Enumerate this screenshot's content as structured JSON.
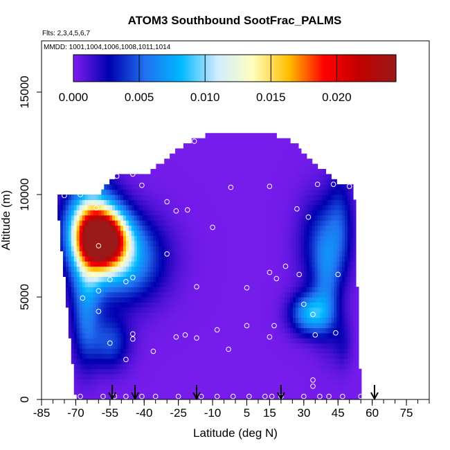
{
  "chart_data": {
    "type": "heatmap",
    "title": "ATOM3 Southbound SootFrac_PALMS",
    "notes": [
      "Flts: 2,3,4,5,6,7",
      "MMDD: 1001,1004,1006,1008,1011,1014"
    ],
    "xlabel": "Latitude (deg N)",
    "ylabel": "Altitude (m)",
    "xlim": [
      -85,
      85
    ],
    "ylim": [
      0,
      17500
    ],
    "xticks": [
      -85,
      -70,
      -55,
      -40,
      -25,
      -10,
      5,
      15,
      30,
      45,
      60,
      75
    ],
    "yticks": [
      0,
      5000,
      10000,
      15000
    ],
    "colorbar": {
      "range": [
        0,
        0.0245
      ],
      "ticks": [
        0.0,
        0.005,
        0.01,
        0.015,
        0.02
      ],
      "tick_labels": [
        "0.000",
        "0.005",
        "0.010",
        "0.015",
        "0.020"
      ]
    },
    "colors": {
      "background_value": "#7f1ef0",
      "scale": [
        "#7f1ef0",
        "#0000b0",
        "#2070f0",
        "#00b8ff",
        "#d0ecff",
        "#ffffc0",
        "#ffc000",
        "#ff0000",
        "#c00000",
        "#9a1a1a"
      ]
    },
    "hotspots": [
      {
        "lat": -57,
        "alt": 7800,
        "value": 0.023
      },
      {
        "lat": -62,
        "alt": 8600,
        "value": 0.013
      },
      {
        "lat": -50,
        "alt": 6800,
        "value": 0.012
      },
      {
        "lat": -55,
        "alt": 2900,
        "value": 0.004
      },
      {
        "lat": 34,
        "alt": 4200,
        "value": 0.008
      },
      {
        "lat": 38,
        "alt": 7500,
        "value": 0.004
      }
    ],
    "flight_markers_lat": [
      -54,
      -44,
      -17,
      20,
      61
    ],
    "sample_points": [
      [
        -81,
        9950
      ],
      [
        -75,
        9950
      ],
      [
        -68,
        10000
      ],
      [
        -61,
        9350
      ],
      [
        -52,
        10900
      ],
      [
        -45,
        11000
      ],
      [
        -41,
        10450
      ],
      [
        -30,
        9650
      ],
      [
        -26,
        9200
      ],
      [
        -21,
        9250
      ],
      [
        -10,
        8400
      ],
      [
        -60,
        7500
      ],
      [
        -30,
        7100
      ],
      [
        -55,
        5850
      ],
      [
        -48,
        5750
      ],
      [
        -45,
        5950
      ],
      [
        -60,
        5300
      ],
      [
        -67,
        4950
      ],
      [
        -60,
        4300
      ],
      [
        -55,
        2750
      ],
      [
        -45,
        3200
      ],
      [
        -45,
        2950
      ],
      [
        -48,
        1950
      ],
      [
        -36,
        2350
      ],
      [
        -26,
        3050
      ],
      [
        -22,
        3150
      ],
      [
        -17,
        3000
      ],
      [
        -8,
        3400
      ],
      [
        -3,
        2450
      ],
      [
        5,
        3600
      ],
      [
        5,
        5450
      ],
      [
        -17,
        5500
      ],
      [
        -18,
        12600
      ],
      [
        -2,
        10350
      ],
      [
        15,
        10400
      ],
      [
        29,
        12500
      ],
      [
        27,
        9300
      ],
      [
        32,
        8900
      ],
      [
        36,
        10500
      ],
      [
        43,
        10500
      ],
      [
        50,
        10400
      ],
      [
        15,
        6200
      ],
      [
        18,
        5900
      ],
      [
        22,
        6500
      ],
      [
        28,
        6100
      ],
      [
        30,
        4650
      ],
      [
        34,
        4150
      ],
      [
        35,
        3150
      ],
      [
        45,
        6100
      ],
      [
        44,
        3250
      ],
      [
        15,
        3050
      ],
      [
        17,
        3600
      ],
      [
        34,
        950
      ],
      [
        34,
        650
      ],
      [
        -68,
        150
      ],
      [
        -58,
        150
      ],
      [
        -53,
        150
      ],
      [
        -48,
        150
      ],
      [
        -41,
        150
      ],
      [
        -35,
        150
      ],
      [
        -25,
        150
      ],
      [
        -15,
        150
      ],
      [
        -8,
        150
      ],
      [
        -1,
        150
      ],
      [
        6,
        150
      ],
      [
        13,
        150
      ],
      [
        16,
        150
      ],
      [
        20,
        150
      ],
      [
        30,
        150
      ],
      [
        37,
        150
      ],
      [
        41,
        150
      ],
      [
        47,
        150
      ],
      [
        55,
        150
      ]
    ]
  }
}
